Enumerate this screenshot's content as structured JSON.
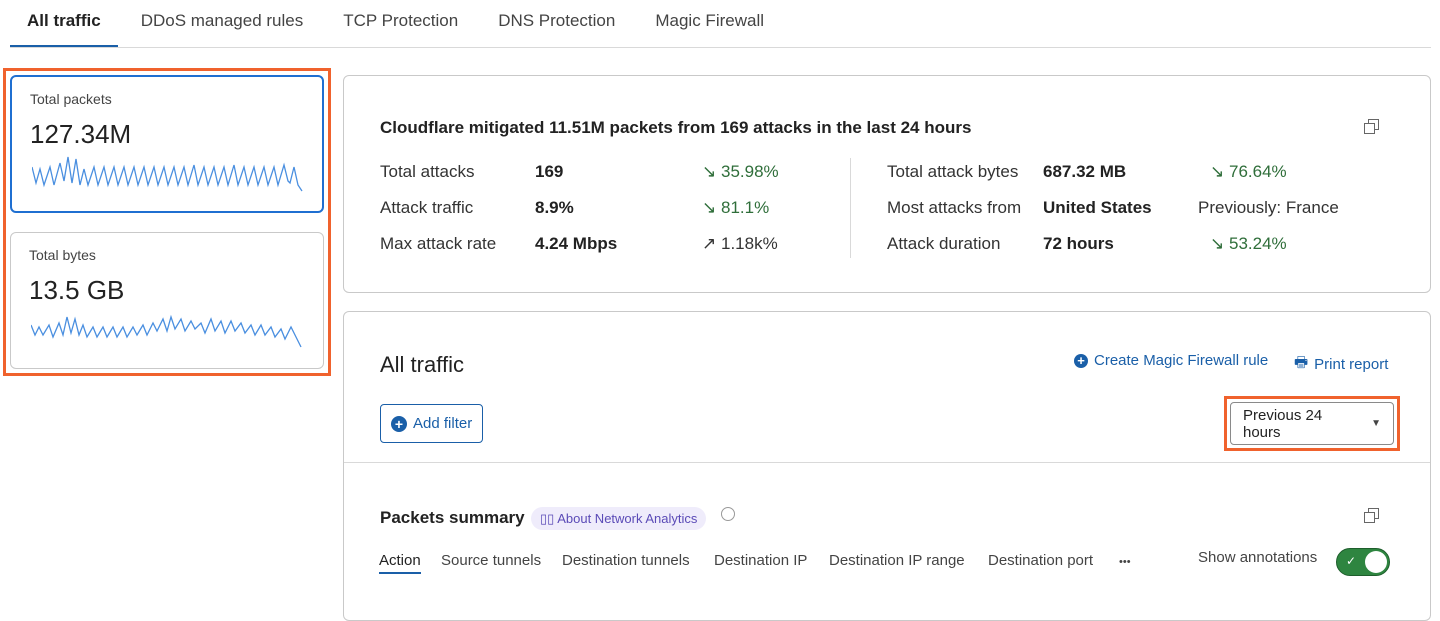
{
  "tabs": [
    "All traffic",
    "DDoS managed rules",
    "TCP Protection",
    "DNS Protection",
    "Magic Firewall"
  ],
  "metrics": [
    {
      "label": "Total packets",
      "value": "127.34M"
    },
    {
      "label": "Total bytes",
      "value": "13.5 GB"
    }
  ],
  "summary": {
    "title": "Cloudflare mitigated 11.51M packets from 169 attacks in the last 24 hours",
    "left": [
      {
        "label": "Total attacks",
        "value": "169",
        "change": "35.98%",
        "direction": "down"
      },
      {
        "label": "Attack traffic",
        "value": "8.9%",
        "change": "81.1%",
        "direction": "down"
      },
      {
        "label": "Max attack rate",
        "value": "4.24 Mbps",
        "change": "1.18k%",
        "direction": "up"
      }
    ],
    "right": [
      {
        "label": "Total attack bytes",
        "value": "687.32 MB",
        "change": "76.64%",
        "direction": "down"
      },
      {
        "label": "Most attacks from",
        "value": "United States",
        "change": "Previously: France",
        "direction": ""
      },
      {
        "label": "Attack duration",
        "value": "72 hours",
        "change": "53.24%",
        "direction": "down"
      }
    ]
  },
  "traffic": {
    "title": "All traffic",
    "create_rule": "Create Magic Firewall rule",
    "print": "Print report",
    "add_filter": "Add filter",
    "time_range": "Previous 24 hours"
  },
  "packets": {
    "title": "Packets summary",
    "about": "About Network Analytics",
    "tabs": [
      "Action",
      "Source tunnels",
      "Destination tunnels",
      "Destination IP",
      "Destination IP range",
      "Destination port"
    ],
    "more": "•••",
    "annotations_label": "Show annotations",
    "annotations_on": true
  },
  "colors": {
    "accent": "#1a5fa8",
    "highlight": "#f0622d",
    "positive": "#2f6e3a",
    "toggle": "#2e8540"
  }
}
